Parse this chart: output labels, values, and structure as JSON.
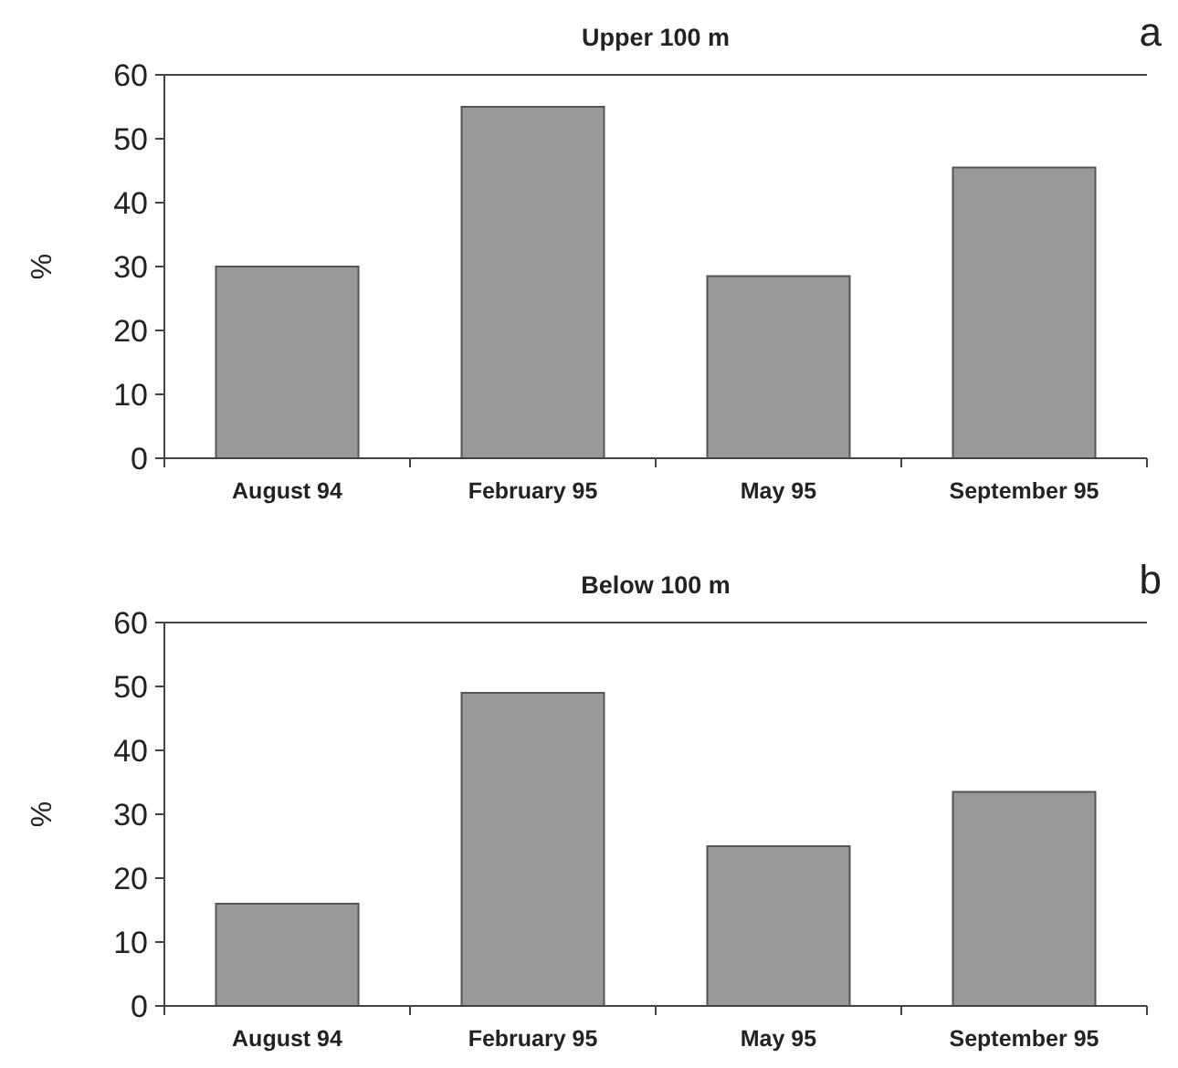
{
  "chart_data": [
    {
      "type": "bar",
      "title": "Upper 100 m",
      "ylabel": "%",
      "categories": [
        "August 94",
        "February 95",
        "May 95",
        "September 95"
      ],
      "values": [
        30,
        55,
        28.5,
        45.5
      ],
      "color": "#999999",
      "ylim": [
        0,
        60
      ],
      "yticks": [
        0,
        10,
        20,
        30,
        40,
        50,
        60
      ],
      "grid": false,
      "annotations": [
        "a"
      ]
    },
    {
      "type": "bar",
      "title": "Below 100 m",
      "ylabel": "%",
      "categories": [
        "August 94",
        "February 95",
        "May 95",
        "September 95"
      ],
      "values": [
        16,
        49,
        25,
        33.5
      ],
      "color": "#999999",
      "ylim": [
        0,
        60
      ],
      "yticks": [
        0,
        10,
        20,
        30,
        40,
        50,
        60
      ],
      "grid": false,
      "annotations": [
        "b"
      ]
    }
  ]
}
